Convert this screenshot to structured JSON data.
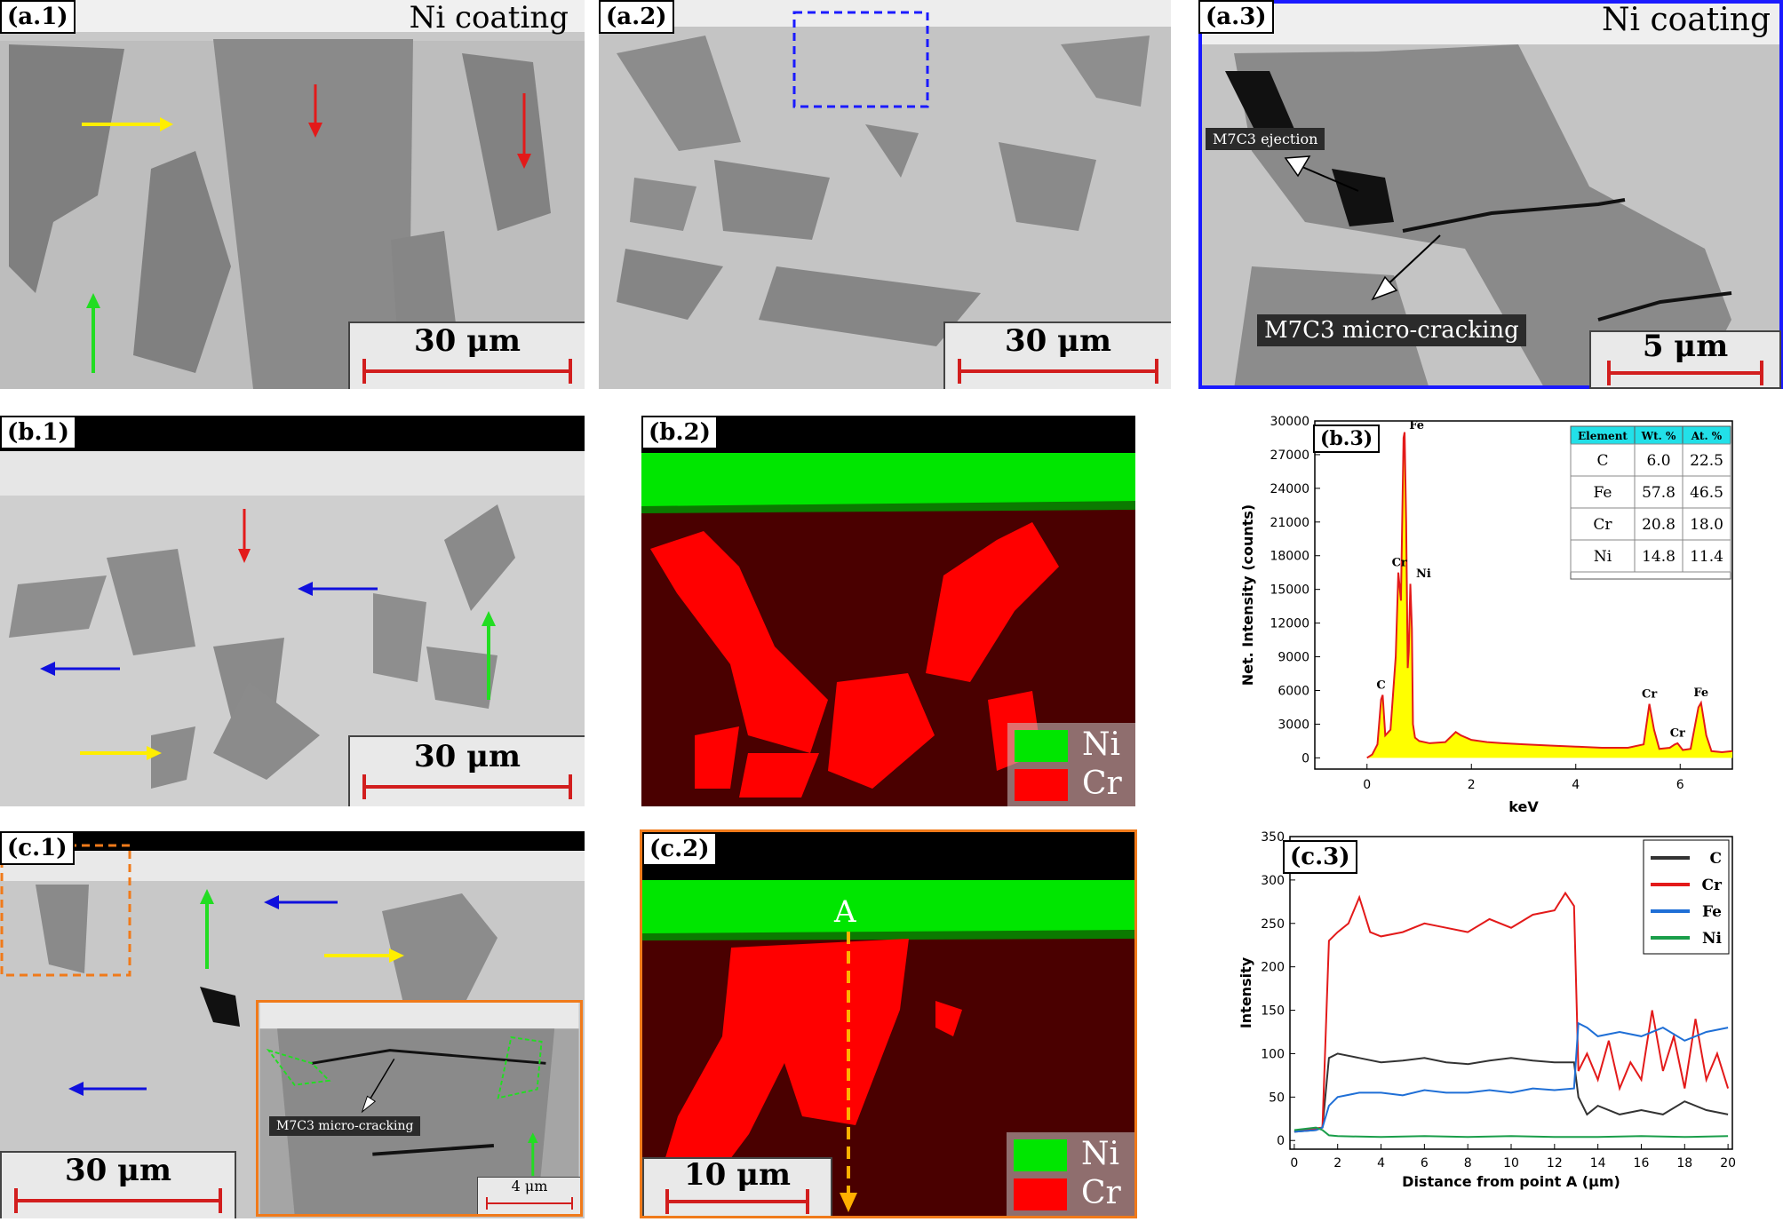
{
  "panels": {
    "a1": {
      "tag": "(a.1)",
      "coating": "Ni coating",
      "scale": "30 μm"
    },
    "a2": {
      "tag": "(a.2)",
      "scale": "30 μm"
    },
    "a3": {
      "tag": "(a.3)",
      "coating": "Ni coating",
      "ejection": "M7C3 ejection",
      "cracking": "M7C3 micro-cracking",
      "scale": "5 μm"
    },
    "b1": {
      "tag": "(b.1)",
      "scale": "30 μm"
    },
    "b2": {
      "tag": "(b.2)",
      "legend": [
        "Ni",
        "Cr"
      ]
    },
    "b3": {
      "tag": "(b.3)"
    },
    "c1": {
      "tag": "(c.1)",
      "scale": "30 μm",
      "inset_label": "M7C3 micro-cracking",
      "inset_scale": "4 μm"
    },
    "c2": {
      "tag": "(c.2)",
      "point": "A",
      "scale": "10 μm",
      "legend": [
        "Ni",
        "Cr"
      ]
    },
    "c3": {
      "tag": "(c.3)"
    }
  },
  "colors": {
    "ni": "#00e600",
    "cr": "#ff0000",
    "red_arrow": "#e31a1a",
    "yellow_arrow": "#ffee00",
    "green_arrow": "#22dd22",
    "blue_arrow": "#1010dd",
    "dashed_blue": "#1a1aff",
    "dashed_orange": "#f07a1a"
  },
  "chart_data": [
    {
      "type": "area",
      "panel": "b.3",
      "xlabel": "keV",
      "ylabel": "Net. Intensity (counts)",
      "xlim": [
        -1,
        7
      ],
      "ylim": [
        -1000,
        30000
      ],
      "xticks": [
        0,
        2,
        4,
        6
      ],
      "yticks": [
        0,
        3000,
        6000,
        9000,
        12000,
        15000,
        18000,
        21000,
        24000,
        27000,
        30000
      ],
      "series": [
        {
          "x": [
            0,
            0.1,
            0.2,
            0.27,
            0.3,
            0.35,
            0.45,
            0.55,
            0.6,
            0.65,
            0.7,
            0.72,
            0.75,
            0.78,
            0.8,
            0.83,
            0.86,
            0.88,
            0.92,
            1.0,
            1.2,
            1.5,
            1.7,
            1.8,
            2.0,
            2.3,
            2.6,
            3.0,
            3.5,
            4.0,
            4.5,
            5.0,
            5.3,
            5.41,
            5.5,
            5.6,
            5.8,
            5.9,
            5.95,
            6.05,
            6.2,
            6.35,
            6.4,
            6.5,
            6.6,
            6.8,
            7.0
          ],
          "y": [
            0,
            300,
            1200,
            5200,
            5600,
            2000,
            2500,
            9000,
            16500,
            14000,
            28500,
            29000,
            21000,
            8000,
            9500,
            15500,
            11500,
            3000,
            1800,
            1500,
            1300,
            1400,
            2300,
            2000,
            1600,
            1400,
            1300,
            1200,
            1100,
            1000,
            900,
            900,
            1200,
            4800,
            2500,
            800,
            900,
            1200,
            1300,
            700,
            800,
            4500,
            4900,
            2000,
            600,
            500,
            600
          ]
        }
      ],
      "annotations": [
        "Fe",
        "Cr",
        "Ni",
        "C",
        "Cr",
        "Cr",
        "Fe"
      ],
      "table": {
        "headers": [
          "Element",
          "Wt. %",
          "At. %"
        ],
        "rows": [
          [
            "C",
            "6.0",
            "22.5"
          ],
          [
            "Fe",
            "57.8",
            "46.5"
          ],
          [
            "Cr",
            "20.8",
            "18.0"
          ],
          [
            "Ni",
            "14.8",
            "11.4"
          ]
        ]
      }
    },
    {
      "type": "line",
      "panel": "c.3",
      "xlabel": "Distance from point A (μm)",
      "ylabel": "Intensity",
      "xlim": [
        -0.2,
        20.2
      ],
      "ylim": [
        -10,
        350
      ],
      "xticks": [
        0,
        2,
        4,
        6,
        8,
        10,
        12,
        14,
        16,
        18,
        20
      ],
      "yticks": [
        0,
        50,
        100,
        150,
        200,
        250,
        300,
        350
      ],
      "legend": "top-right",
      "series": [
        {
          "name": "C",
          "color": "#333333",
          "x": [
            0,
            1,
            1.3,
            1.6,
            2,
            3,
            4,
            5,
            6,
            7,
            8,
            9,
            10,
            11,
            12,
            12.9,
            13.1,
            13.5,
            14,
            15,
            16,
            17,
            18,
            19,
            20
          ],
          "y": [
            10,
            12,
            15,
            95,
            100,
            95,
            90,
            92,
            95,
            90,
            88,
            92,
            95,
            92,
            90,
            90,
            50,
            30,
            40,
            30,
            35,
            30,
            45,
            35,
            30
          ]
        },
        {
          "name": "Cr",
          "color": "#e31a1a",
          "x": [
            0,
            1,
            1.3,
            1.6,
            2,
            2.5,
            3,
            3.5,
            4,
            5,
            6,
            7,
            8,
            9,
            10,
            11,
            12,
            12.5,
            12.9,
            13.1,
            13.5,
            14,
            14.5,
            15,
            15.5,
            16,
            16.5,
            17,
            17.5,
            18,
            18.5,
            19,
            19.5,
            20
          ],
          "y": [
            10,
            14,
            15,
            230,
            240,
            250,
            280,
            240,
            235,
            240,
            250,
            245,
            240,
            255,
            245,
            260,
            265,
            285,
            270,
            80,
            100,
            70,
            115,
            60,
            90,
            70,
            150,
            80,
            120,
            60,
            140,
            70,
            100,
            60
          ]
        },
        {
          "name": "Fe",
          "color": "#1f6fd6",
          "x": [
            0,
            1,
            1.3,
            1.6,
            2,
            3,
            4,
            5,
            6,
            7,
            8,
            9,
            10,
            11,
            12,
            12.9,
            13.1,
            13.5,
            14,
            15,
            16,
            17,
            18,
            19,
            20
          ],
          "y": [
            10,
            12,
            15,
            40,
            50,
            55,
            55,
            52,
            58,
            55,
            55,
            58,
            55,
            60,
            58,
            60,
            135,
            130,
            120,
            125,
            120,
            130,
            115,
            125,
            130
          ]
        },
        {
          "name": "Ni",
          "color": "#1a9e4a",
          "x": [
            0,
            1,
            1.3,
            1.6,
            2,
            4,
            6,
            8,
            10,
            12,
            14,
            16,
            18,
            20
          ],
          "y": [
            12,
            15,
            12,
            6,
            5,
            4,
            5,
            4,
            5,
            4,
            4,
            5,
            4,
            5
          ]
        }
      ]
    }
  ]
}
